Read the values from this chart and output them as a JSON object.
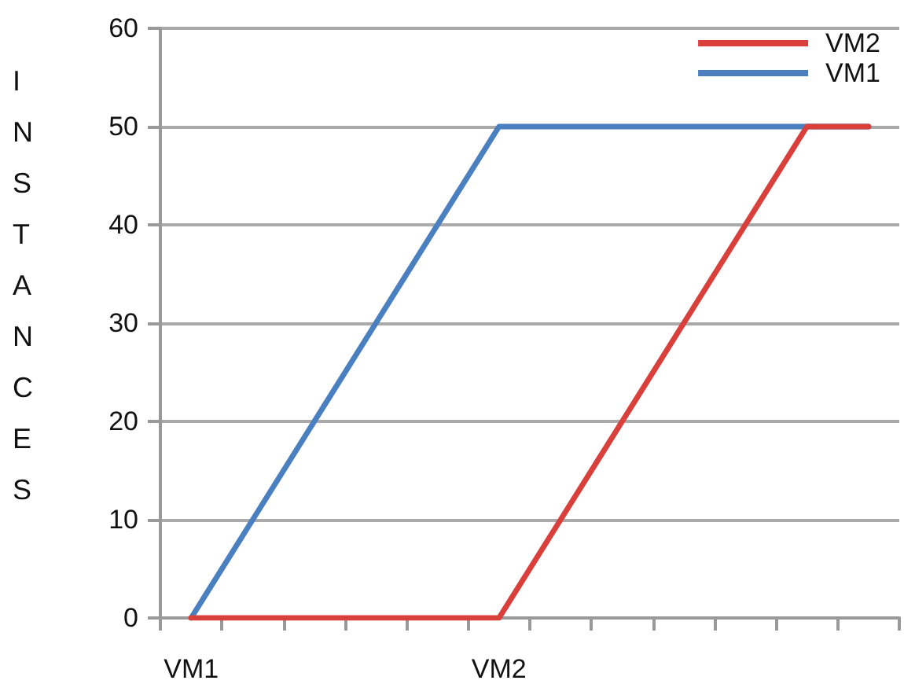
{
  "chart_data": {
    "type": "line",
    "ylabel": "INSTANCES",
    "categories": [
      "VM1",
      null,
      null,
      null,
      null,
      "VM2",
      null,
      null,
      null,
      null,
      null,
      null
    ],
    "series": [
      {
        "name": "VM2",
        "color": "#d9403b",
        "values": [
          0,
          0,
          0,
          0,
          0,
          0,
          10,
          20,
          30,
          40,
          50,
          50
        ]
      },
      {
        "name": "VM1",
        "color": "#4a7fc0",
        "values": [
          0,
          10,
          20,
          30,
          40,
          50,
          50,
          50,
          50,
          50,
          50,
          50
        ]
      }
    ],
    "ylim": [
      0,
      60
    ],
    "yticks": [
      0,
      10,
      20,
      30,
      40,
      50,
      60
    ],
    "grid": "y",
    "legend": "top right",
    "marker": "none",
    "line_style": "solid"
  }
}
